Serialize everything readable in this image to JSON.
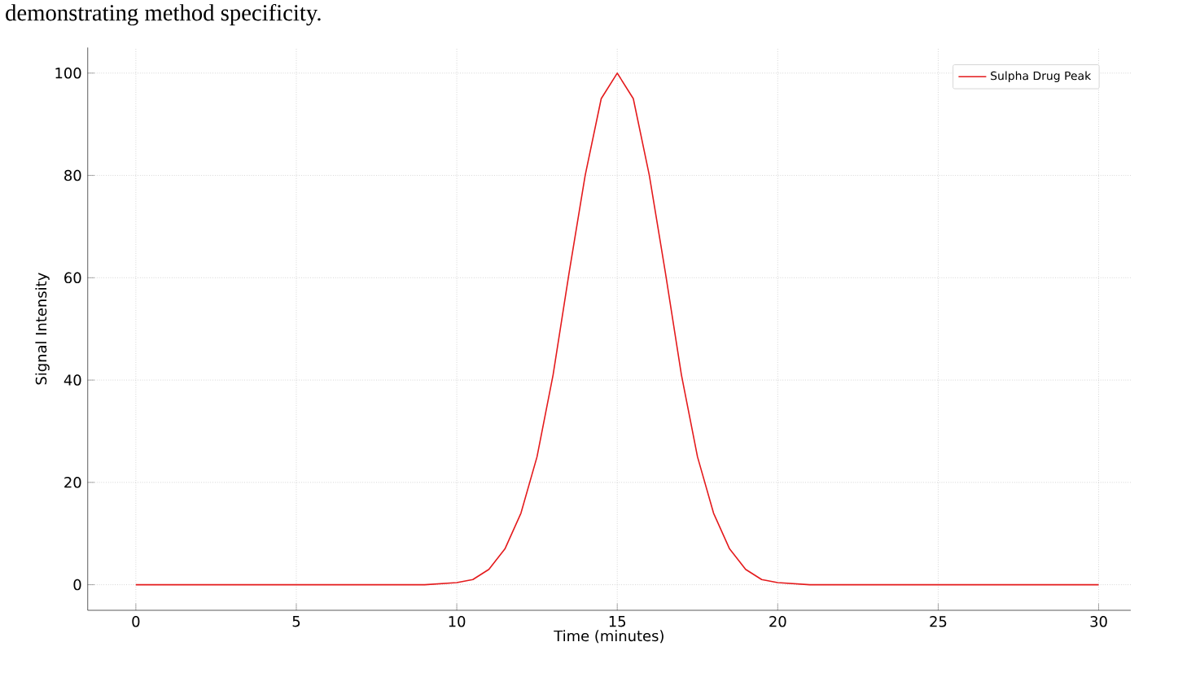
{
  "chart_data": {
    "type": "line",
    "xlabel": "Time (minutes)",
    "ylabel": "Signal Intensity",
    "annotations": [
      "demonstrating method specificity."
    ],
    "series": [
      {
        "name": "Sulpha Drug Peak",
        "color": "#e41a1c",
        "x": [
          0,
          5,
          9,
          10,
          10.5,
          11,
          11.5,
          12,
          12.5,
          13,
          13.5,
          14,
          14.5,
          15,
          15.5,
          16,
          16.5,
          17,
          17.5,
          18,
          18.5,
          19,
          19.5,
          20,
          21,
          25,
          30
        ],
        "values": [
          0,
          0,
          0,
          0.4,
          1,
          3,
          7,
          14,
          25,
          41,
          61,
          80,
          95,
          100,
          95,
          80,
          61,
          41,
          25,
          14,
          7,
          3,
          1,
          0.4,
          0,
          0,
          0
        ]
      }
    ],
    "xlim": [
      -1.5,
      31
    ],
    "ylim": [
      -5,
      105
    ],
    "xticks": [
      0,
      5,
      10,
      15,
      20,
      25,
      30
    ],
    "yticks": [
      0,
      20,
      40,
      60,
      80,
      100
    ],
    "grid": true,
    "legend": "top right",
    "marker": "none",
    "line_style": "solid"
  }
}
